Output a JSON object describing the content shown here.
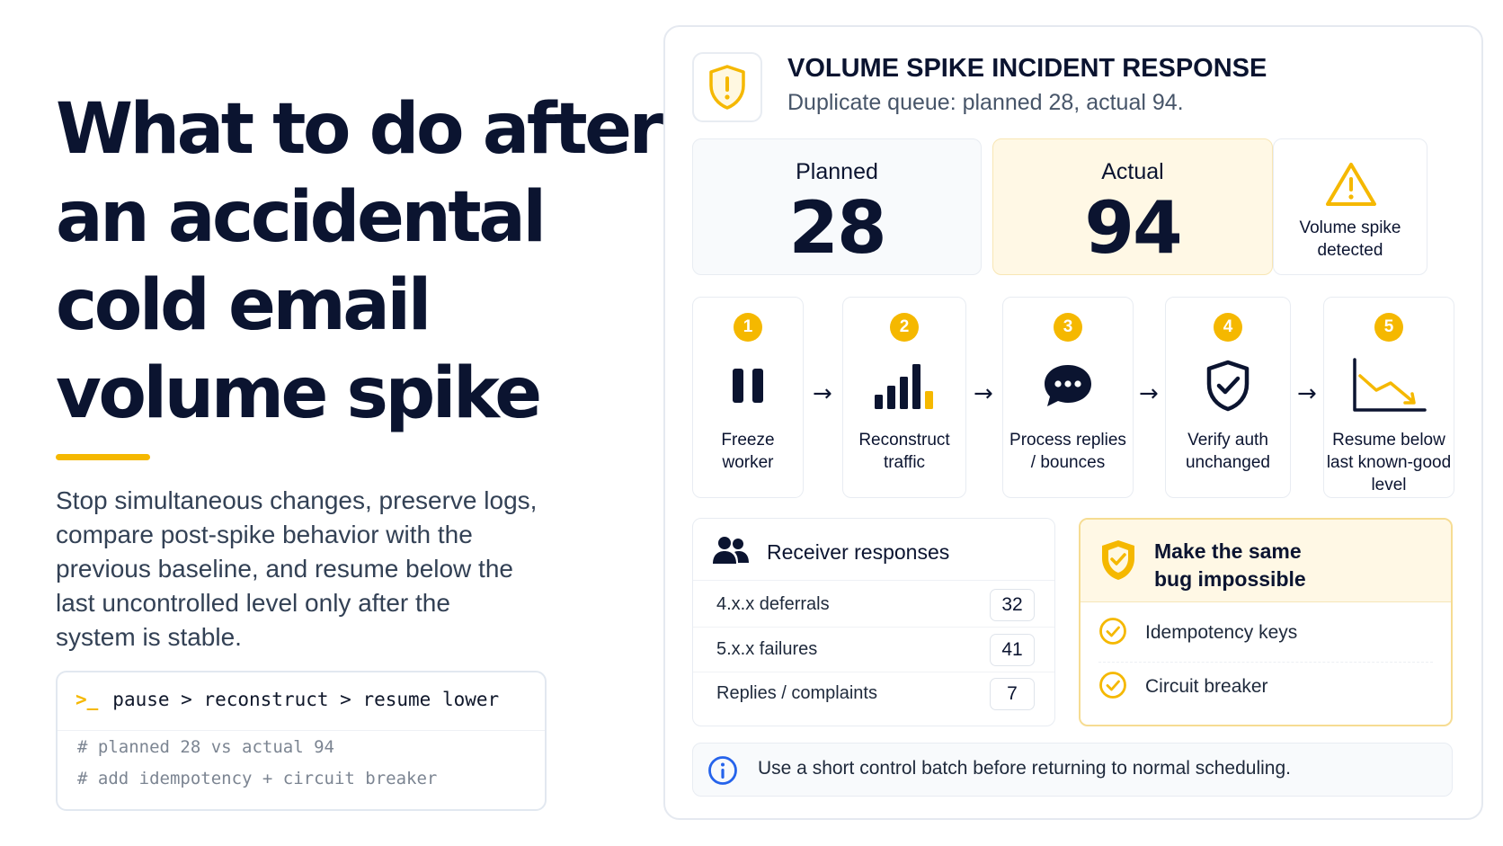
{
  "headline": {
    "lines": [
      "What to do after",
      "an accidental",
      "cold email",
      "volume spike"
    ]
  },
  "lead": {
    "lines": [
      "Stop simultaneous changes, preserve logs,",
      "compare post-spike behavior with the",
      "previous baseline, and resume below the",
      "last uncontrolled level only after the",
      "system is stable."
    ]
  },
  "code": {
    "prompt": ">_",
    "command": "pause > reconstruct > resume lower",
    "comments": [
      "# planned 28 vs actual 94",
      "# add idempotency + circuit breaker"
    ]
  },
  "panel": {
    "title": "VOLUME SPIKE INCIDENT RESPONSE",
    "subtitle": "Duplicate queue: planned 28, actual 94.",
    "icon": "shield-alert-icon"
  },
  "stats": {
    "planned": {
      "label": "Planned",
      "value": "28"
    },
    "actual": {
      "label": "Actual",
      "value": "94"
    },
    "alert": {
      "lines": [
        "Volume spike",
        "detected"
      ],
      "icon": "warning-triangle-icon"
    }
  },
  "steps": [
    {
      "num": "1",
      "lines": [
        "Freeze",
        "worker"
      ],
      "icon": "pause-icon"
    },
    {
      "num": "2",
      "lines": [
        "Reconstruct",
        "traffic"
      ],
      "icon": "bar-chart-icon"
    },
    {
      "num": "3",
      "lines": [
        "Process replies",
        "/ bounces"
      ],
      "icon": "chat-bubble-icon"
    },
    {
      "num": "4",
      "lines": [
        "Verify auth",
        "unchanged"
      ],
      "icon": "shield-check-icon"
    },
    {
      "num": "5",
      "lines": [
        "Resume below",
        "last known-good",
        "level"
      ],
      "icon": "trend-down-icon"
    }
  ],
  "arrow_glyph": "→",
  "responses": {
    "title": "Receiver responses",
    "icon": "users-icon",
    "rows": [
      {
        "label": "4.x.x deferrals",
        "count": "32"
      },
      {
        "label": "5.x.x failures",
        "count": "41"
      },
      {
        "label": "Replies / complaints",
        "count": "7"
      }
    ]
  },
  "fix": {
    "title_lines": [
      "Make the same",
      "bug impossible"
    ],
    "icon": "shield-check-icon",
    "items": [
      "Idempotency keys",
      "Circuit breaker"
    ]
  },
  "note": {
    "text": "Use a short control batch before returning to normal scheduling.",
    "icon": "info-icon"
  },
  "colors": {
    "accent": "#f5b800",
    "navy": "#0b1430",
    "info": "#2563eb"
  }
}
